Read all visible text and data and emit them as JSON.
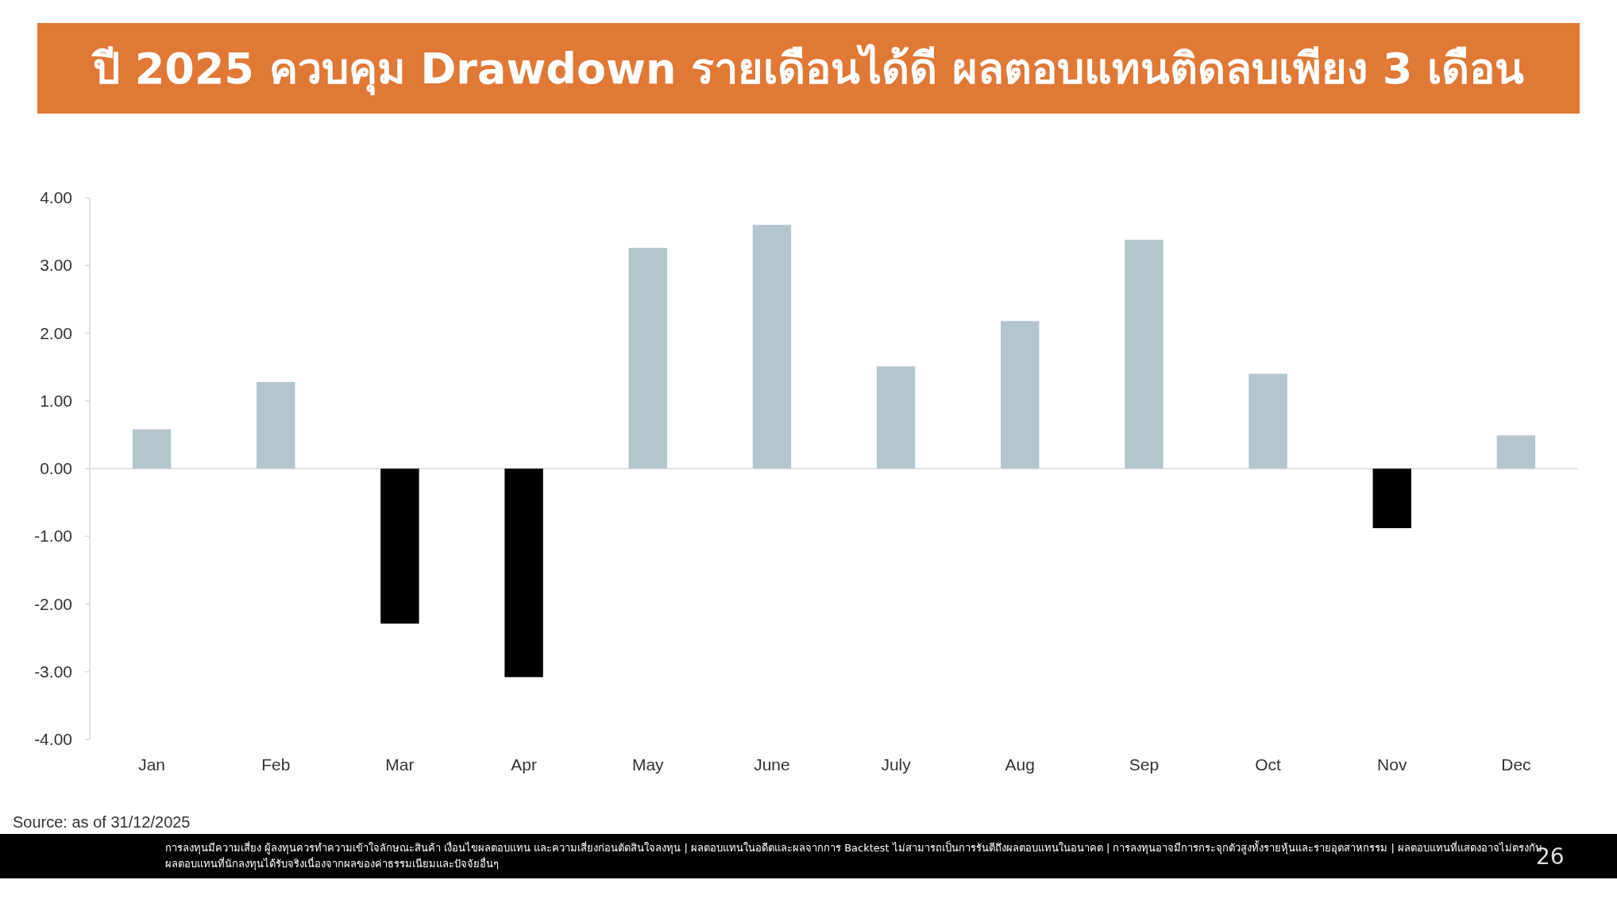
{
  "chart_data": {
    "type": "bar",
    "title": "ปี 2025 ควบคุม Drawdown รายเดือนได้ดี ผลตอบแทนติดลบเพียง 3 เดือน",
    "categories": [
      "Jan",
      "Feb",
      "Mar",
      "Apr",
      "May",
      "June",
      "July",
      "Aug",
      "Sep",
      "Oct",
      "Nov",
      "Dec"
    ],
    "values": [
      0.58,
      1.28,
      -2.29,
      -3.08,
      3.26,
      3.6,
      1.51,
      2.18,
      3.38,
      1.4,
      -0.88,
      0.49
    ],
    "colors": [
      "#b4c5ce",
      "#b4c5ce",
      "#000000",
      "#000000",
      "#b4c5ce",
      "#b4c5ce",
      "#b4c5ce",
      "#b4c5ce",
      "#b4c5ce",
      "#b4c5ce",
      "#000000",
      "#b4c5ce"
    ],
    "ylim": [
      -4,
      4
    ],
    "yticks": [
      {
        "value": 4,
        "label": "4.00"
      },
      {
        "value": 3,
        "label": "3.00"
      },
      {
        "value": 2,
        "label": "2.00"
      },
      {
        "value": 1,
        "label": "1.00"
      },
      {
        "value": 0,
        "label": "0.00"
      },
      {
        "value": -1,
        "label": "-1.00"
      },
      {
        "value": -2,
        "label": "-2.00"
      },
      {
        "value": -3,
        "label": "-3.00"
      },
      {
        "value": -4,
        "label": "-4.00"
      }
    ],
    "annotations": [
      "Source: as of 31/12/2025",
      "การลงทุนมีความเสี่ยง ผู้ลงทุนควรทำความเข้าใจลักษณะสินค้า เงื่อนไขผลตอบแทน และความเสี่ยงก่อนตัดสินใจลงทุน | ผลตอบแทนในอดีตและผลจากการ Backtest ไม่สามารถเป็นการรันตีถึงผลตอบแทนในอนาคต | การลงทุนอาจมีการกระจุกตัวสูงทั้งรายหุ้นและรายอุตสาหกรรม | ผลตอบแทนที่แสดงอาจไม่ตรงกับผลตอบแทนที่นักลงทุนได้รับจริงเนื่องจากผลของค่าธรรมเนียมและปัจจัยอื่นๆ",
      "26"
    ]
  }
}
